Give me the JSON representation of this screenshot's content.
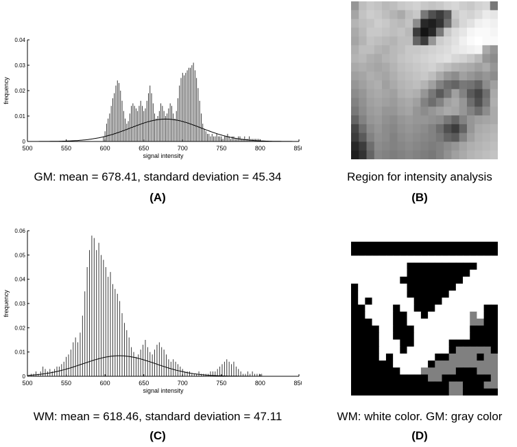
{
  "chart_data": [
    {
      "panel": "(A)",
      "type": "bar",
      "xlabel": "signal intensity",
      "ylabel": "frequency",
      "xlim": [
        500,
        850
      ],
      "ylim": [
        0,
        0.04
      ],
      "xticks": [
        "500",
        "550",
        "600",
        "650",
        "700",
        "750",
        "800",
        "850"
      ],
      "yticks": [
        "0",
        "0.01",
        "0.02",
        "0.03",
        "0.04"
      ],
      "fit_curve": {
        "type": "gaussian",
        "mean": 678.41,
        "sd": 45.34
      },
      "x": [
        598,
        600,
        602,
        604,
        606,
        608,
        610,
        612,
        614,
        616,
        618,
        620,
        622,
        624,
        626,
        628,
        630,
        632,
        634,
        636,
        638,
        640,
        642,
        644,
        646,
        648,
        650,
        652,
        654,
        656,
        658,
        660,
        662,
        664,
        666,
        668,
        670,
        672,
        674,
        676,
        678,
        680,
        682,
        684,
        686,
        688,
        690,
        692,
        694,
        696,
        698,
        700,
        702,
        704,
        706,
        708,
        710,
        712,
        714,
        716,
        718,
        720,
        722,
        724,
        726,
        728,
        730,
        732,
        734,
        736,
        738,
        740,
        742,
        744,
        746,
        748,
        750,
        752,
        754,
        756,
        758,
        760,
        762,
        764,
        766,
        768,
        770,
        772,
        774,
        776,
        778,
        780,
        782,
        784,
        786,
        788,
        790,
        792,
        794,
        796,
        798,
        800
      ],
      "values": [
        0.002,
        0.004,
        0.007,
        0.009,
        0.011,
        0.014,
        0.017,
        0.019,
        0.022,
        0.024,
        0.023,
        0.02,
        0.016,
        0.012,
        0.009,
        0.007,
        0.008,
        0.011,
        0.014,
        0.015,
        0.014,
        0.013,
        0.012,
        0.014,
        0.016,
        0.014,
        0.012,
        0.013,
        0.016,
        0.019,
        0.022,
        0.019,
        0.015,
        0.011,
        0.009,
        0.01,
        0.012,
        0.015,
        0.014,
        0.012,
        0.01,
        0.011,
        0.013,
        0.015,
        0.014,
        0.011,
        0.009,
        0.012,
        0.017,
        0.022,
        0.025,
        0.027,
        0.026,
        0.027,
        0.028,
        0.029,
        0.029,
        0.03,
        0.031,
        0.028,
        0.025,
        0.021,
        0.016,
        0.011,
        0.007,
        0.005,
        0.004,
        0.003,
        0.003,
        0.002,
        0.003,
        0.002,
        0.002,
        0.003,
        0.002,
        0.002,
        0.002,
        0.001,
        0.002,
        0.002,
        0.003,
        0.002,
        0.001,
        0.002,
        0.002,
        0.001,
        0.001,
        0.002,
        0.002,
        0.001,
        0.001,
        0.002,
        0.001,
        0.001,
        0.002,
        0.001,
        0.001,
        0.001,
        0.001,
        0.001,
        0.001,
        0.0
      ]
    },
    {
      "panel": "(C)",
      "type": "bar",
      "xlabel": "signal intensity",
      "ylabel": "frequency",
      "xlim": [
        500,
        850
      ],
      "ylim": [
        0,
        0.06
      ],
      "xticks": [
        "500",
        "550",
        "600",
        "650",
        "700",
        "750",
        "800",
        "850"
      ],
      "yticks": [
        "0",
        "0.01",
        "0.02",
        "0.03",
        "0.04",
        "0.05",
        "0.06"
      ],
      "fit_curve": {
        "type": "gaussian",
        "mean": 618.46,
        "sd": 47.11
      },
      "x": [
        502,
        505,
        508,
        511,
        514,
        517,
        520,
        523,
        526,
        529,
        532,
        535,
        538,
        541,
        544,
        547,
        550,
        553,
        556,
        559,
        562,
        565,
        568,
        571,
        574,
        577,
        580,
        583,
        586,
        589,
        592,
        595,
        598,
        601,
        604,
        607,
        610,
        613,
        616,
        619,
        622,
        625,
        628,
        631,
        634,
        637,
        640,
        643,
        646,
        649,
        652,
        655,
        658,
        661,
        664,
        667,
        670,
        673,
        676,
        679,
        682,
        685,
        688,
        691,
        694,
        697,
        700,
        703,
        706,
        709,
        712,
        715,
        718,
        721,
        724,
        727,
        730,
        733,
        736,
        739,
        742,
        745,
        748,
        751,
        754,
        757,
        760,
        763,
        766,
        769,
        772,
        775,
        778,
        781,
        784,
        787,
        790,
        793,
        796,
        799,
        802
      ],
      "values": [
        0.0,
        0.001,
        0.001,
        0.002,
        0.001,
        0.002,
        0.004,
        0.003,
        0.002,
        0.003,
        0.002,
        0.003,
        0.004,
        0.004,
        0.005,
        0.006,
        0.008,
        0.009,
        0.011,
        0.014,
        0.016,
        0.014,
        0.018,
        0.025,
        0.035,
        0.045,
        0.052,
        0.058,
        0.057,
        0.052,
        0.055,
        0.05,
        0.048,
        0.045,
        0.041,
        0.043,
        0.038,
        0.036,
        0.034,
        0.031,
        0.026,
        0.022,
        0.019,
        0.016,
        0.012,
        0.01,
        0.008,
        0.009,
        0.011,
        0.013,
        0.015,
        0.012,
        0.01,
        0.009,
        0.011,
        0.013,
        0.014,
        0.012,
        0.011,
        0.009,
        0.007,
        0.006,
        0.007,
        0.006,
        0.005,
        0.004,
        0.003,
        0.002,
        0.002,
        0.002,
        0.001,
        0.001,
        0.001,
        0.002,
        0.001,
        0.001,
        0.001,
        0.001,
        0.002,
        0.002,
        0.002,
        0.003,
        0.004,
        0.005,
        0.006,
        0.007,
        0.006,
        0.005,
        0.006,
        0.004,
        0.003,
        0.002,
        0.001,
        0.001,
        0.002,
        0.001,
        0.002,
        0.001,
        0.001,
        0.001,
        0.001
      ]
    }
  ],
  "captions": {
    "a": "GM: mean = 678.41, standard deviation = 45.34",
    "a_label": "(A)",
    "b": "Region for intensity analysis",
    "b_label": "(B)",
    "c": "WM: mean = 618.46, standard deviation = 47.11",
    "c_label": "(C)",
    "d": "WM: white color. GM: gray color",
    "d_label": "(D)"
  },
  "region_image": {
    "description_colors": "grayscale MRI intensity patch",
    "grid": [
      [
        150,
        190,
        200,
        195,
        185,
        190,
        200,
        205,
        210,
        200,
        195,
        200,
        210,
        215,
        205,
        200,
        210,
        215,
        120
      ],
      [
        165,
        195,
        205,
        200,
        190,
        180,
        170,
        190,
        200,
        120,
        80,
        60,
        90,
        200,
        215,
        210,
        220,
        235,
        230
      ],
      [
        180,
        190,
        195,
        205,
        200,
        190,
        185,
        195,
        140,
        40,
        30,
        50,
        110,
        190,
        215,
        225,
        240,
        245,
        240
      ],
      [
        170,
        185,
        200,
        200,
        195,
        190,
        195,
        185,
        60,
        20,
        40,
        120,
        200,
        220,
        230,
        245,
        250,
        250,
        245
      ],
      [
        165,
        180,
        195,
        190,
        185,
        180,
        190,
        190,
        100,
        60,
        150,
        205,
        215,
        225,
        240,
        250,
        255,
        250,
        250
      ],
      [
        175,
        190,
        190,
        180,
        175,
        185,
        190,
        200,
        200,
        205,
        210,
        215,
        220,
        230,
        235,
        240,
        245,
        170,
        150
      ],
      [
        180,
        185,
        175,
        170,
        180,
        185,
        195,
        200,
        205,
        210,
        215,
        220,
        225,
        215,
        210,
        200,
        185,
        150,
        140
      ],
      [
        170,
        175,
        170,
        165,
        170,
        180,
        190,
        195,
        200,
        205,
        210,
        200,
        190,
        180,
        175,
        170,
        160,
        170,
        150
      ],
      [
        160,
        165,
        175,
        170,
        165,
        175,
        185,
        190,
        195,
        200,
        190,
        170,
        150,
        140,
        160,
        150,
        140,
        150,
        140
      ],
      [
        150,
        160,
        170,
        175,
        160,
        170,
        180,
        185,
        190,
        180,
        160,
        130,
        110,
        100,
        120,
        115,
        100,
        140,
        160
      ],
      [
        140,
        150,
        165,
        170,
        165,
        160,
        175,
        180,
        175,
        150,
        120,
        90,
        120,
        160,
        130,
        90,
        70,
        110,
        170
      ],
      [
        130,
        145,
        160,
        165,
        160,
        155,
        165,
        170,
        160,
        130,
        110,
        130,
        160,
        170,
        150,
        110,
        80,
        120,
        175
      ],
      [
        120,
        140,
        155,
        160,
        150,
        150,
        160,
        165,
        150,
        140,
        150,
        160,
        170,
        165,
        150,
        130,
        110,
        140,
        170
      ],
      [
        100,
        130,
        150,
        155,
        145,
        140,
        150,
        155,
        150,
        150,
        145,
        140,
        120,
        100,
        130,
        150,
        160,
        165,
        170
      ],
      [
        70,
        110,
        140,
        150,
        140,
        135,
        145,
        150,
        145,
        140,
        130,
        110,
        80,
        60,
        100,
        150,
        170,
        175,
        180
      ],
      [
        60,
        90,
        130,
        145,
        140,
        130,
        140,
        145,
        140,
        135,
        130,
        120,
        100,
        90,
        130,
        160,
        175,
        180,
        185
      ],
      [
        40,
        60,
        110,
        140,
        135,
        130,
        135,
        140,
        135,
        130,
        125,
        130,
        140,
        150,
        165,
        175,
        180,
        185,
        190
      ],
      [
        30,
        50,
        100,
        135,
        130,
        125,
        130,
        135,
        130,
        125,
        120,
        130,
        145,
        160,
        170,
        180,
        185,
        190,
        195
      ]
    ]
  },
  "segmentation_image": {
    "legend": "0=black, 1=white, 2=gray",
    "grid": [
      [
        0,
        0,
        0,
        0,
        0,
        0,
        0,
        0,
        0,
        0,
        0,
        0,
        0,
        0,
        0,
        0,
        0,
        0,
        0,
        0,
        0
      ],
      [
        0,
        0,
        0,
        0,
        0,
        0,
        0,
        0,
        0,
        0,
        0,
        0,
        0,
        0,
        0,
        0,
        0,
        0,
        0,
        0,
        0
      ],
      [
        1,
        1,
        1,
        1,
        1,
        1,
        1,
        1,
        1,
        1,
        1,
        1,
        1,
        1,
        1,
        1,
        1,
        1,
        1,
        1,
        1
      ],
      [
        1,
        1,
        1,
        1,
        1,
        1,
        1,
        1,
        0,
        0,
        0,
        0,
        0,
        0,
        0,
        0,
        0,
        0,
        1,
        1,
        1
      ],
      [
        1,
        1,
        1,
        1,
        1,
        1,
        1,
        1,
        0,
        0,
        0,
        0,
        0,
        0,
        0,
        0,
        0,
        1,
        1,
        1,
        1
      ],
      [
        1,
        1,
        1,
        1,
        1,
        1,
        1,
        0,
        0,
        0,
        0,
        0,
        0,
        0,
        0,
        0,
        1,
        1,
        1,
        1,
        1
      ],
      [
        0,
        1,
        1,
        1,
        1,
        1,
        1,
        1,
        0,
        0,
        0,
        0,
        0,
        0,
        0,
        1,
        1,
        1,
        1,
        1,
        1
      ],
      [
        0,
        1,
        1,
        1,
        1,
        1,
        1,
        1,
        0,
        0,
        0,
        0,
        0,
        0,
        1,
        1,
        1,
        1,
        1,
        1,
        1
      ],
      [
        0,
        1,
        0,
        1,
        1,
        1,
        1,
        1,
        1,
        0,
        0,
        0,
        0,
        1,
        1,
        1,
        1,
        1,
        1,
        1,
        1
      ],
      [
        0,
        0,
        1,
        1,
        1,
        1,
        0,
        1,
        1,
        0,
        0,
        0,
        1,
        1,
        1,
        1,
        1,
        1,
        1,
        0,
        0
      ],
      [
        0,
        0,
        1,
        1,
        1,
        1,
        0,
        0,
        1,
        1,
        0,
        1,
        1,
        1,
        1,
        1,
        1,
        2,
        1,
        0,
        0
      ],
      [
        0,
        0,
        0,
        1,
        1,
        1,
        0,
        0,
        1,
        1,
        1,
        1,
        1,
        1,
        1,
        1,
        1,
        2,
        2,
        0,
        0
      ],
      [
        0,
        0,
        0,
        0,
        1,
        1,
        0,
        0,
        0,
        1,
        1,
        1,
        1,
        1,
        1,
        1,
        1,
        0,
        0,
        0,
        0
      ],
      [
        0,
        0,
        0,
        0,
        1,
        1,
        0,
        0,
        0,
        1,
        1,
        1,
        1,
        1,
        1,
        1,
        1,
        0,
        0,
        0,
        0
      ],
      [
        0,
        0,
        0,
        0,
        1,
        1,
        1,
        0,
        0,
        1,
        1,
        1,
        1,
        1,
        0,
        0,
        0,
        0,
        0,
        0,
        0
      ],
      [
        0,
        0,
        0,
        0,
        1,
        1,
        1,
        0,
        1,
        1,
        1,
        1,
        1,
        1,
        0,
        2,
        2,
        2,
        2,
        2,
        0
      ],
      [
        0,
        0,
        0,
        0,
        1,
        0,
        1,
        1,
        1,
        1,
        1,
        1,
        0,
        0,
        2,
        2,
        2,
        2,
        0,
        2,
        2
      ],
      [
        0,
        0,
        0,
        0,
        0,
        0,
        1,
        1,
        1,
        1,
        1,
        0,
        2,
        2,
        2,
        2,
        2,
        2,
        2,
        2,
        2
      ],
      [
        0,
        0,
        0,
        0,
        0,
        0,
        0,
        1,
        1,
        1,
        2,
        2,
        2,
        2,
        2,
        0,
        0,
        0,
        2,
        2,
        2
      ],
      [
        0,
        0,
        0,
        0,
        0,
        0,
        0,
        0,
        0,
        0,
        0,
        2,
        2,
        0,
        0,
        0,
        0,
        0,
        0,
        0,
        2
      ],
      [
        0,
        0,
        0,
        0,
        0,
        0,
        0,
        0,
        0,
        0,
        0,
        0,
        0,
        0,
        2,
        2,
        0,
        0,
        0,
        2,
        2
      ],
      [
        0,
        0,
        0,
        0,
        0,
        0,
        0,
        0,
        0,
        0,
        0,
        0,
        0,
        0,
        2,
        2,
        0,
        0,
        0,
        0,
        0
      ]
    ]
  }
}
